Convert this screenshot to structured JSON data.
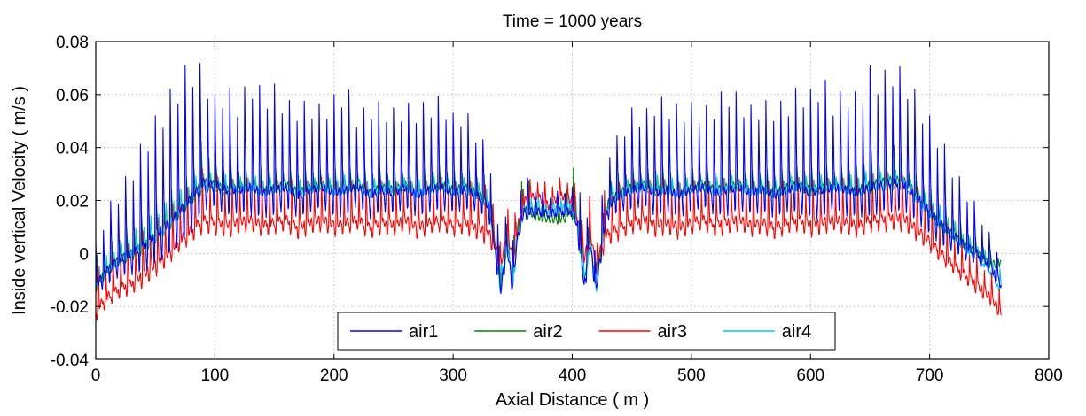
{
  "chart_data": {
    "type": "line",
    "title": "Time = 1000 years",
    "xlabel": "Axial Distance ( m )",
    "ylabel": "Inside vertical Velocity ( m/s )",
    "xlim": [
      0,
      800
    ],
    "ylim": [
      -0.04,
      0.08
    ],
    "xticks": [
      "0",
      "100",
      "200",
      "300",
      "400",
      "500",
      "600",
      "700",
      "800"
    ],
    "yticks": [
      "-0.04",
      "-0.02",
      "0",
      "0.02",
      "0.04",
      "0.06",
      "0.08"
    ],
    "grid": true,
    "legend_position": "bottom-center",
    "legend_orientation": "horizontal",
    "envelope_x": [
      0,
      10,
      20,
      30,
      40,
      50,
      60,
      70,
      80,
      90,
      100,
      110,
      120,
      130,
      140,
      150,
      160,
      170,
      180,
      190,
      200,
      210,
      220,
      230,
      240,
      250,
      260,
      270,
      280,
      290,
      300,
      310,
      320,
      330,
      335,
      340,
      345,
      350,
      355,
      360,
      370,
      380,
      390,
      400,
      405,
      410,
      415,
      420,
      425,
      430,
      440,
      450,
      460,
      470,
      480,
      490,
      500,
      510,
      520,
      530,
      540,
      550,
      560,
      570,
      580,
      590,
      600,
      610,
      620,
      630,
      640,
      650,
      660,
      670,
      680,
      690,
      700,
      710,
      720,
      730,
      740,
      750,
      760
    ],
    "series": [
      {
        "name": "air1",
        "color": "#0000ff",
        "values": [
          -0.012,
          -0.006,
          -0.002,
          0.0,
          0.003,
          0.007,
          0.011,
          0.016,
          0.021,
          0.027,
          0.026,
          0.024,
          0.024,
          0.025,
          0.023,
          0.024,
          0.025,
          0.022,
          0.024,
          0.025,
          0.023,
          0.024,
          0.025,
          0.022,
          0.024,
          0.023,
          0.025,
          0.022,
          0.024,
          0.025,
          0.023,
          0.024,
          0.022,
          0.018,
          0.002,
          -0.014,
          0.003,
          -0.012,
          0.01,
          0.016,
          0.016,
          0.015,
          0.016,
          0.016,
          0.01,
          -0.012,
          0.004,
          -0.014,
          0.004,
          0.018,
          0.022,
          0.024,
          0.025,
          0.023,
          0.024,
          0.022,
          0.024,
          0.025,
          0.023,
          0.024,
          0.025,
          0.023,
          0.024,
          0.022,
          0.024,
          0.025,
          0.023,
          0.024,
          0.025,
          0.024,
          0.023,
          0.025,
          0.026,
          0.027,
          0.026,
          0.021,
          0.016,
          0.011,
          0.007,
          0.003,
          0.0,
          -0.004,
          -0.012
        ],
        "peaks": [
          0.004,
          0.018,
          0.025,
          0.033,
          0.044,
          0.052,
          0.06,
          0.068,
          0.074,
          0.071,
          0.06,
          0.064,
          0.058,
          0.068,
          0.062,
          0.064,
          0.058,
          0.057,
          0.058,
          0.056,
          0.06,
          0.065,
          0.052,
          0.058,
          0.057,
          0.055,
          0.057,
          0.056,
          0.058,
          0.06,
          0.053,
          0.055,
          0.046,
          0.04,
          0.022,
          0.0,
          0.022,
          0.005,
          0.025,
          0.03,
          0.024,
          0.022,
          0.024,
          0.025,
          0.038,
          0.005,
          0.022,
          0.0,
          0.022,
          0.04,
          0.046,
          0.055,
          0.053,
          0.06,
          0.058,
          0.056,
          0.057,
          0.055,
          0.058,
          0.064,
          0.06,
          0.056,
          0.058,
          0.057,
          0.058,
          0.064,
          0.062,
          0.068,
          0.058,
          0.064,
          0.06,
          0.071,
          0.068,
          0.073,
          0.068,
          0.06,
          0.052,
          0.044,
          0.033,
          0.025,
          0.018,
          0.008,
          0.0
        ]
      },
      {
        "name": "air2",
        "color": "#008000",
        "values": [
          -0.012,
          -0.006,
          -0.002,
          0.0,
          0.003,
          0.007,
          0.011,
          0.016,
          0.021,
          0.027,
          0.026,
          0.024,
          0.025,
          0.026,
          0.024,
          0.025,
          0.026,
          0.023,
          0.025,
          0.026,
          0.024,
          0.025,
          0.026,
          0.023,
          0.025,
          0.024,
          0.026,
          0.023,
          0.025,
          0.026,
          0.024,
          0.025,
          0.023,
          0.019,
          0.003,
          -0.012,
          0.004,
          -0.01,
          0.011,
          0.017,
          0.014,
          0.013,
          0.013,
          0.017,
          0.011,
          -0.01,
          0.005,
          -0.012,
          0.005,
          0.019,
          0.023,
          0.025,
          0.026,
          0.024,
          0.025,
          0.023,
          0.025,
          0.026,
          0.024,
          0.025,
          0.026,
          0.024,
          0.025,
          0.023,
          0.025,
          0.026,
          0.024,
          0.025,
          0.026,
          0.025,
          0.024,
          0.026,
          0.027,
          0.028,
          0.027,
          0.022,
          0.016,
          0.011,
          0.007,
          0.003,
          0.0,
          -0.004,
          -0.004
        ],
        "peaks": [
          0.0,
          0.004,
          0.008,
          0.012,
          0.016,
          0.02,
          0.024,
          0.028,
          0.032,
          0.046,
          0.034,
          0.034,
          0.033,
          0.034,
          0.033,
          0.033,
          0.032,
          0.032,
          0.033,
          0.032,
          0.033,
          0.034,
          0.032,
          0.033,
          0.032,
          0.032,
          0.033,
          0.032,
          0.033,
          0.034,
          0.032,
          0.033,
          0.031,
          0.03,
          0.012,
          0.0,
          0.014,
          0.002,
          0.033,
          0.032,
          0.022,
          0.018,
          0.022,
          0.034,
          0.033,
          0.002,
          0.014,
          0.0,
          0.012,
          0.03,
          0.031,
          0.033,
          0.032,
          0.034,
          0.033,
          0.032,
          0.033,
          0.032,
          0.033,
          0.034,
          0.033,
          0.032,
          0.033,
          0.032,
          0.033,
          0.034,
          0.033,
          0.034,
          0.033,
          0.034,
          0.034,
          0.04,
          0.036,
          0.046,
          0.034,
          0.03,
          0.026,
          0.02,
          0.015,
          0.01,
          0.006,
          0.002,
          -0.002
        ]
      },
      {
        "name": "air3",
        "color": "#ff0000",
        "values": [
          -0.021,
          -0.016,
          -0.013,
          -0.011,
          -0.008,
          -0.004,
          0.0,
          0.005,
          0.009,
          0.013,
          0.012,
          0.011,
          0.012,
          0.013,
          0.011,
          0.012,
          0.013,
          0.01,
          0.012,
          0.013,
          0.011,
          0.012,
          0.013,
          0.01,
          0.012,
          0.011,
          0.013,
          0.01,
          0.012,
          0.013,
          0.011,
          0.012,
          0.01,
          0.008,
          0.004,
          -0.005,
          0.008,
          -0.002,
          0.012,
          0.02,
          0.022,
          0.018,
          0.022,
          0.02,
          0.012,
          -0.002,
          0.008,
          -0.005,
          0.004,
          0.008,
          0.01,
          0.012,
          0.013,
          0.011,
          0.012,
          0.01,
          0.012,
          0.013,
          0.011,
          0.012,
          0.013,
          0.011,
          0.012,
          0.01,
          0.012,
          0.013,
          0.011,
          0.012,
          0.013,
          0.012,
          0.011,
          0.013,
          0.013,
          0.014,
          0.013,
          0.009,
          0.005,
          0.0,
          -0.004,
          -0.008,
          -0.012,
          -0.016,
          -0.022
        ],
        "peaks": [
          -0.002,
          0.0,
          0.004,
          0.008,
          0.012,
          0.016,
          0.02,
          0.024,
          0.03,
          0.036,
          0.033,
          0.032,
          0.031,
          0.032,
          0.03,
          0.031,
          0.032,
          0.03,
          0.031,
          0.032,
          0.03,
          0.031,
          0.03,
          0.03,
          0.031,
          0.03,
          0.031,
          0.03,
          0.031,
          0.032,
          0.03,
          0.031,
          0.03,
          0.029,
          0.026,
          0.004,
          0.026,
          0.012,
          0.026,
          0.029,
          0.03,
          0.028,
          0.03,
          0.03,
          0.026,
          0.012,
          0.026,
          0.004,
          0.026,
          0.029,
          0.03,
          0.031,
          0.03,
          0.032,
          0.031,
          0.03,
          0.031,
          0.03,
          0.031,
          0.032,
          0.031,
          0.03,
          0.031,
          0.03,
          0.031,
          0.032,
          0.031,
          0.032,
          0.031,
          0.032,
          0.032,
          0.034,
          0.033,
          0.036,
          0.033,
          0.028,
          0.022,
          0.016,
          0.011,
          0.006,
          0.002,
          -0.004,
          -0.01
        ]
      },
      {
        "name": "air4",
        "color": "#00c8e8",
        "values": [
          -0.013,
          -0.007,
          -0.003,
          0.0,
          0.003,
          0.006,
          0.01,
          0.015,
          0.02,
          0.025,
          0.025,
          0.023,
          0.024,
          0.025,
          0.023,
          0.024,
          0.025,
          0.022,
          0.024,
          0.025,
          0.023,
          0.024,
          0.025,
          0.022,
          0.024,
          0.023,
          0.025,
          0.022,
          0.024,
          0.025,
          0.023,
          0.024,
          0.022,
          0.018,
          0.002,
          -0.013,
          0.003,
          -0.011,
          0.01,
          0.017,
          0.017,
          0.016,
          0.017,
          0.017,
          0.01,
          -0.011,
          0.004,
          -0.013,
          0.003,
          0.018,
          0.022,
          0.024,
          0.025,
          0.023,
          0.024,
          0.022,
          0.024,
          0.025,
          0.023,
          0.024,
          0.025,
          0.023,
          0.024,
          0.022,
          0.024,
          0.025,
          0.023,
          0.024,
          0.025,
          0.024,
          0.023,
          0.025,
          0.025,
          0.026,
          0.025,
          0.02,
          0.015,
          0.01,
          0.006,
          0.002,
          -0.001,
          -0.006,
          -0.014
        ],
        "peaks": [
          -0.004,
          0.0,
          0.004,
          0.008,
          0.012,
          0.016,
          0.02,
          0.024,
          0.028,
          0.032,
          0.03,
          0.03,
          0.029,
          0.03,
          0.029,
          0.029,
          0.028,
          0.028,
          0.029,
          0.028,
          0.029,
          0.03,
          0.028,
          0.029,
          0.028,
          0.028,
          0.029,
          0.028,
          0.029,
          0.03,
          0.028,
          0.029,
          0.027,
          0.026,
          0.01,
          0.0,
          0.012,
          0.002,
          0.024,
          0.025,
          0.022,
          0.02,
          0.022,
          0.025,
          0.024,
          0.002,
          0.012,
          0.0,
          0.01,
          0.026,
          0.027,
          0.029,
          0.028,
          0.03,
          0.029,
          0.028,
          0.029,
          0.028,
          0.029,
          0.03,
          0.029,
          0.028,
          0.029,
          0.028,
          0.029,
          0.03,
          0.029,
          0.03,
          0.029,
          0.03,
          0.03,
          0.032,
          0.031,
          0.032,
          0.03,
          0.026,
          0.022,
          0.018,
          0.013,
          0.008,
          0.004,
          0.0,
          -0.006
        ]
      }
    ]
  }
}
